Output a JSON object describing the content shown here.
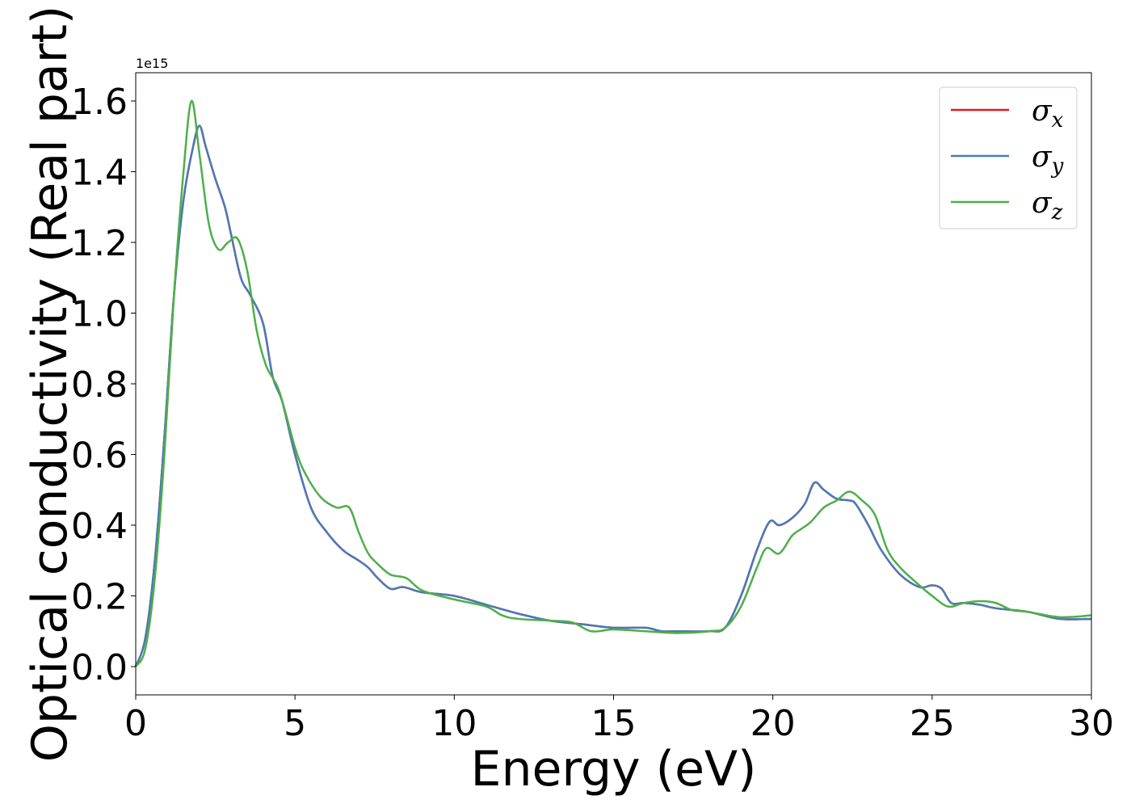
{
  "chart_data": {
    "type": "line",
    "title": "",
    "xlabel": "Energy (eV)",
    "ylabel": "Optical conductivity (Real part)",
    "y_offset_label": "1e15",
    "xlim": [
      0,
      30
    ],
    "ylim": [
      -0.08,
      1.68
    ],
    "xticks": [
      0,
      5,
      10,
      15,
      20,
      25,
      30
    ],
    "xtick_labels": [
      "0",
      "5",
      "10",
      "15",
      "20",
      "25",
      "30"
    ],
    "yticks": [
      0.0,
      0.2,
      0.4,
      0.6,
      0.8,
      1.0,
      1.2,
      1.4,
      1.6
    ],
    "ytick_labels": [
      "0.0",
      "0.2",
      "0.4",
      "0.6",
      "0.8",
      "1.0",
      "1.2",
      "1.4",
      "1.6"
    ],
    "grid": false,
    "legend_position": "top-right",
    "series": [
      {
        "symbol": "σ",
        "subscript": "x",
        "color": "#e41a1c",
        "x": [
          0,
          0.3,
          0.6,
          0.9,
          1.2,
          1.5,
          1.8,
          2.0,
          2.2,
          2.5,
          2.8,
          3.0,
          3.3,
          3.6,
          4.0,
          4.3,
          4.6,
          5.0,
          5.5,
          6.0,
          6.5,
          7.0,
          7.3,
          7.6,
          8.0,
          8.4,
          9.0,
          10.0,
          11.0,
          12.0,
          13.0,
          14.0,
          15.0,
          16.0,
          16.5,
          17.0,
          18.0,
          18.5,
          19.0,
          19.5,
          19.9,
          20.2,
          20.6,
          21.0,
          21.3,
          21.6,
          22.0,
          22.4,
          22.6,
          23.0,
          23.4,
          24.0,
          24.6,
          25.0,
          25.3,
          25.6,
          26.0,
          26.5,
          27.0,
          28.0,
          29.0,
          30.0
        ],
        "y": [
          0.0,
          0.08,
          0.3,
          0.65,
          1.05,
          1.32,
          1.47,
          1.53,
          1.47,
          1.38,
          1.3,
          1.22,
          1.1,
          1.05,
          0.97,
          0.82,
          0.75,
          0.6,
          0.45,
          0.38,
          0.33,
          0.3,
          0.28,
          0.25,
          0.22,
          0.225,
          0.21,
          0.2,
          0.175,
          0.15,
          0.13,
          0.12,
          0.11,
          0.11,
          0.1,
          0.1,
          0.1,
          0.11,
          0.2,
          0.33,
          0.41,
          0.4,
          0.42,
          0.46,
          0.52,
          0.5,
          0.475,
          0.47,
          0.46,
          0.4,
          0.33,
          0.26,
          0.225,
          0.23,
          0.22,
          0.18,
          0.18,
          0.175,
          0.165,
          0.155,
          0.135,
          0.135
        ]
      },
      {
        "symbol": "σ",
        "subscript": "y",
        "color": "#4a7ab8",
        "x": [
          0,
          0.3,
          0.6,
          0.9,
          1.2,
          1.5,
          1.8,
          2.0,
          2.2,
          2.5,
          2.8,
          3.0,
          3.3,
          3.6,
          4.0,
          4.3,
          4.6,
          5.0,
          5.5,
          6.0,
          6.5,
          7.0,
          7.3,
          7.6,
          8.0,
          8.4,
          9.0,
          10.0,
          11.0,
          12.0,
          13.0,
          14.0,
          15.0,
          16.0,
          16.5,
          17.0,
          18.0,
          18.5,
          19.0,
          19.5,
          19.9,
          20.2,
          20.6,
          21.0,
          21.3,
          21.6,
          22.0,
          22.4,
          22.6,
          23.0,
          23.4,
          24.0,
          24.6,
          25.0,
          25.3,
          25.6,
          26.0,
          26.5,
          27.0,
          28.0,
          29.0,
          30.0
        ],
        "y": [
          0.0,
          0.08,
          0.3,
          0.65,
          1.05,
          1.32,
          1.47,
          1.53,
          1.47,
          1.38,
          1.3,
          1.22,
          1.1,
          1.05,
          0.97,
          0.82,
          0.75,
          0.6,
          0.45,
          0.38,
          0.33,
          0.3,
          0.28,
          0.25,
          0.22,
          0.225,
          0.21,
          0.2,
          0.175,
          0.15,
          0.13,
          0.12,
          0.11,
          0.11,
          0.1,
          0.1,
          0.1,
          0.11,
          0.2,
          0.33,
          0.41,
          0.4,
          0.42,
          0.46,
          0.52,
          0.5,
          0.475,
          0.47,
          0.46,
          0.4,
          0.33,
          0.26,
          0.225,
          0.23,
          0.22,
          0.18,
          0.18,
          0.175,
          0.165,
          0.155,
          0.135,
          0.135
        ]
      },
      {
        "symbol": "σ",
        "subscript": "z",
        "color": "#4daf4a",
        "x": [
          0,
          0.3,
          0.6,
          0.9,
          1.2,
          1.5,
          1.75,
          2.0,
          2.3,
          2.6,
          2.9,
          3.2,
          3.5,
          3.8,
          4.1,
          4.5,
          5.0,
          5.3,
          5.8,
          6.3,
          6.7,
          7.0,
          7.3,
          7.6,
          8.0,
          8.5,
          9.0,
          10.0,
          11.0,
          11.5,
          12.0,
          13.0,
          13.7,
          14.3,
          15.0,
          16.0,
          17.0,
          18.0,
          18.5,
          19.0,
          19.5,
          19.8,
          20.2,
          20.6,
          20.9,
          21.2,
          21.6,
          22.0,
          22.4,
          22.8,
          23.2,
          23.6,
          24.0,
          24.6,
          25.0,
          25.5,
          26.0,
          26.5,
          27.0,
          27.5,
          28.0,
          29.0,
          30.0
        ],
        "y": [
          0.0,
          0.05,
          0.25,
          0.6,
          1.05,
          1.4,
          1.6,
          1.45,
          1.25,
          1.18,
          1.2,
          1.21,
          1.12,
          0.95,
          0.85,
          0.78,
          0.62,
          0.55,
          0.48,
          0.45,
          0.45,
          0.38,
          0.32,
          0.29,
          0.26,
          0.25,
          0.215,
          0.19,
          0.17,
          0.145,
          0.135,
          0.13,
          0.125,
          0.1,
          0.105,
          0.1,
          0.095,
          0.1,
          0.11,
          0.17,
          0.28,
          0.335,
          0.32,
          0.37,
          0.39,
          0.41,
          0.45,
          0.47,
          0.495,
          0.47,
          0.43,
          0.33,
          0.28,
          0.23,
          0.2,
          0.17,
          0.18,
          0.185,
          0.18,
          0.16,
          0.155,
          0.14,
          0.145
        ]
      }
    ]
  }
}
